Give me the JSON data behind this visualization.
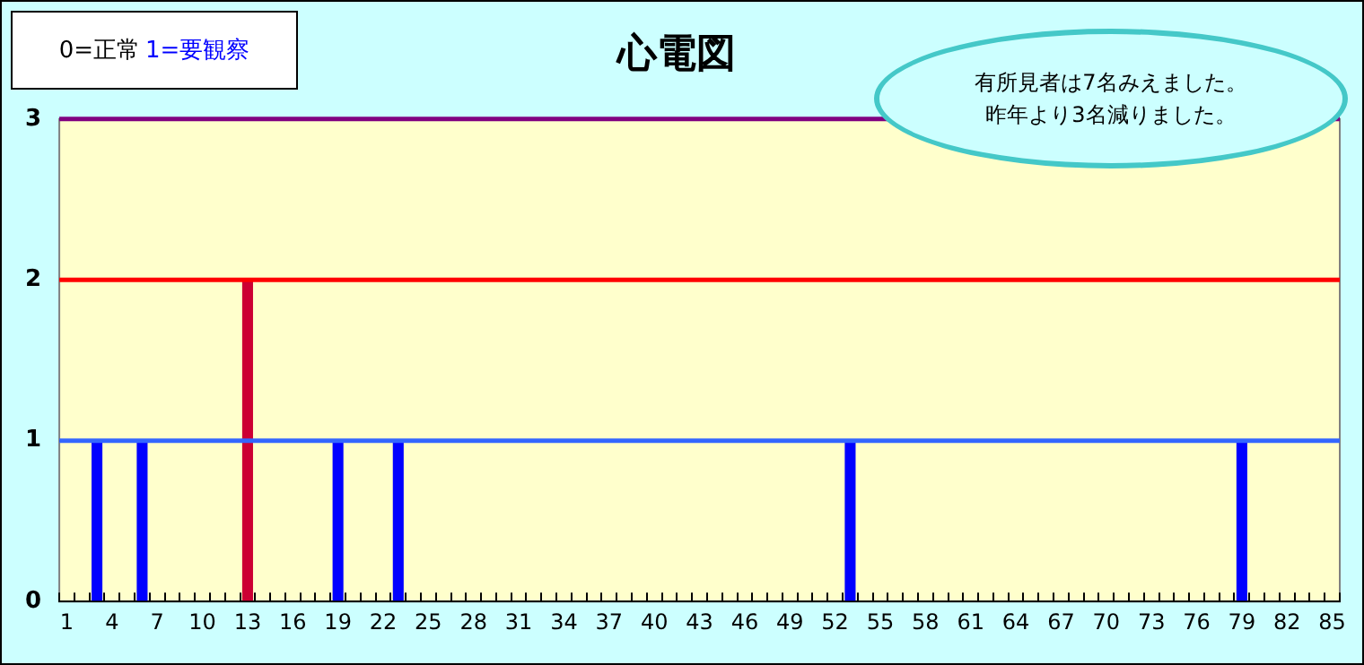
{
  "chart_data": {
    "type": "bar",
    "title": "心電図",
    "categories": [
      "1",
      null,
      null,
      "4",
      null,
      null,
      "7",
      null,
      null,
      "10",
      null,
      null,
      "13",
      null,
      null,
      "16",
      null,
      null,
      "19",
      null,
      null,
      "22",
      null,
      null,
      "25",
      null,
      null,
      "28",
      null,
      null,
      "31",
      null,
      null,
      "34",
      null,
      null,
      "37",
      null,
      null,
      "40",
      null,
      null,
      "43",
      null,
      null,
      "46",
      null,
      null,
      "49",
      null,
      null,
      "52",
      null,
      null,
      "55",
      null,
      null,
      "58",
      null,
      null,
      "61",
      null,
      null,
      "64",
      null,
      null,
      "67",
      null,
      null,
      "70",
      null,
      null,
      "73",
      null,
      null,
      "76",
      null,
      null,
      "79",
      null,
      null,
      "82",
      null,
      null,
      "85"
    ],
    "values": [
      0,
      0,
      1,
      0,
      0,
      1,
      0,
      0,
      0,
      0,
      0,
      0,
      2,
      0,
      0,
      0,
      0,
      0,
      1,
      0,
      0,
      0,
      1,
      0,
      0,
      0,
      0,
      0,
      0,
      0,
      0,
      0,
      0,
      0,
      0,
      0,
      0,
      0,
      0,
      0,
      0,
      0,
      0,
      0,
      0,
      0,
      0,
      0,
      0,
      0,
      0,
      0,
      1,
      0,
      0,
      0,
      0,
      0,
      0,
      0,
      0,
      0,
      0,
      0,
      0,
      0,
      0,
      0,
      0,
      0,
      0,
      0,
      0,
      0,
      0,
      0,
      0,
      0,
      1,
      0,
      0,
      0,
      0,
      0,
      0
    ],
    "colors": [
      "#0000ff",
      "#0000ff",
      "#0000ff",
      "#0000ff",
      "#0000ff",
      "#0000ff",
      "#0000ff",
      "#0000ff",
      "#0000ff",
      "#0000ff",
      "#0000ff",
      "#0000ff",
      "#cc0033",
      "#0000ff",
      "#0000ff",
      "#0000ff",
      "#0000ff",
      "#0000ff",
      "#0000ff",
      "#0000ff",
      "#0000ff",
      "#0000ff",
      "#0000ff",
      "#0000ff",
      "#0000ff",
      "#0000ff",
      "#0000ff",
      "#0000ff",
      "#0000ff",
      "#0000ff",
      "#0000ff",
      "#0000ff",
      "#0000ff",
      "#0000ff",
      "#0000ff",
      "#0000ff",
      "#0000ff",
      "#0000ff",
      "#0000ff",
      "#0000ff",
      "#0000ff",
      "#0000ff",
      "#0000ff",
      "#0000ff",
      "#0000ff",
      "#0000ff",
      "#0000ff",
      "#0000ff",
      "#0000ff",
      "#0000ff",
      "#0000ff",
      "#0000ff",
      "#0000ff",
      "#0000ff",
      "#0000ff",
      "#0000ff",
      "#0000ff",
      "#0000ff",
      "#0000ff",
      "#0000ff",
      "#0000ff",
      "#0000ff",
      "#0000ff",
      "#0000ff",
      "#0000ff",
      "#0000ff",
      "#0000ff",
      "#0000ff",
      "#0000ff",
      "#0000ff",
      "#0000ff",
      "#0000ff",
      "#0000ff",
      "#0000ff",
      "#0000ff",
      "#0000ff",
      "#0000ff",
      "#0000ff",
      "#0000ff",
      "#0000ff",
      "#0000ff",
      "#0000ff",
      "#0000ff",
      "#0000ff",
      "#0000ff"
    ],
    "ylim": [
      0,
      3
    ],
    "yticks": [
      0,
      1,
      2,
      3
    ],
    "grid": "y",
    "legend": false,
    "ref_lines": [
      {
        "axis": "y",
        "value": 1,
        "color": "#3366ff"
      },
      {
        "axis": "y",
        "value": 2,
        "color": "#ff0000"
      },
      {
        "axis": "y",
        "value": 3,
        "color": "#800080"
      }
    ],
    "annotations": [
      "0=正常",
      "1=要観察",
      "有所見者は7名みえました。",
      "昨年より3名減りました。"
    ]
  }
}
